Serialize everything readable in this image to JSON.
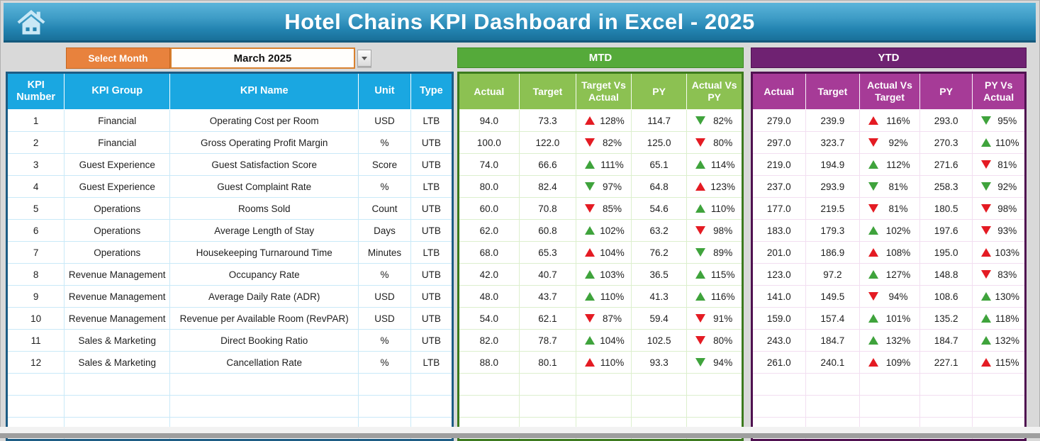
{
  "header": {
    "title": "Hotel Chains KPI Dashboard in Excel - 2025"
  },
  "controls": {
    "select_month_label": "Select Month",
    "selected_month": "March 2025"
  },
  "kpi_table": {
    "headers": [
      "KPI Number",
      "KPI Group",
      "KPI Name",
      "Unit",
      "Type"
    ],
    "rows": [
      {
        "number": "1",
        "group": "Financial",
        "name": "Operating Cost per Room",
        "unit": "USD",
        "type": "LTB"
      },
      {
        "number": "2",
        "group": "Financial",
        "name": "Gross Operating Profit Margin",
        "unit": "%",
        "type": "UTB"
      },
      {
        "number": "3",
        "group": "Guest Experience",
        "name": "Guest Satisfaction Score",
        "unit": "Score",
        "type": "UTB"
      },
      {
        "number": "4",
        "group": "Guest Experience",
        "name": "Guest Complaint Rate",
        "unit": "%",
        "type": "LTB"
      },
      {
        "number": "5",
        "group": "Operations",
        "name": "Rooms Sold",
        "unit": "Count",
        "type": "UTB"
      },
      {
        "number": "6",
        "group": "Operations",
        "name": "Average Length of Stay",
        "unit": "Days",
        "type": "UTB"
      },
      {
        "number": "7",
        "group": "Operations",
        "name": "Housekeeping Turnaround Time",
        "unit": "Minutes",
        "type": "LTB"
      },
      {
        "number": "8",
        "group": "Revenue Management",
        "name": "Occupancy Rate",
        "unit": "%",
        "type": "UTB"
      },
      {
        "number": "9",
        "group": "Revenue Management",
        "name": "Average Daily Rate (ADR)",
        "unit": "USD",
        "type": "UTB"
      },
      {
        "number": "10",
        "group": "Revenue Management",
        "name": "Revenue per Available Room (RevPAR)",
        "unit": "USD",
        "type": "UTB"
      },
      {
        "number": "11",
        "group": "Sales & Marketing",
        "name": "Direct Booking Ratio",
        "unit": "%",
        "type": "UTB"
      },
      {
        "number": "12",
        "group": "Sales & Marketing",
        "name": "Cancellation Rate",
        "unit": "%",
        "type": "LTB"
      }
    ],
    "empty_row_count": 3
  },
  "mtd_table": {
    "title": "MTD",
    "headers": [
      "Actual",
      "Target",
      "Target Vs Actual",
      "PY",
      "Actual Vs PY"
    ],
    "rows": [
      {
        "actual": "94.0",
        "target": "73.3",
        "target_vs_actual": {
          "direction": "up",
          "color": "red",
          "value": "128%"
        },
        "py": "114.7",
        "actual_vs_py": {
          "direction": "down",
          "color": "green",
          "value": "82%"
        }
      },
      {
        "actual": "100.0",
        "target": "122.0",
        "target_vs_actual": {
          "direction": "down",
          "color": "red",
          "value": "82%"
        },
        "py": "125.0",
        "actual_vs_py": {
          "direction": "down",
          "color": "red",
          "value": "80%"
        }
      },
      {
        "actual": "74.0",
        "target": "66.6",
        "target_vs_actual": {
          "direction": "up",
          "color": "green",
          "value": "111%"
        },
        "py": "65.1",
        "actual_vs_py": {
          "direction": "up",
          "color": "green",
          "value": "114%"
        }
      },
      {
        "actual": "80.0",
        "target": "82.4",
        "target_vs_actual": {
          "direction": "down",
          "color": "green",
          "value": "97%"
        },
        "py": "64.8",
        "actual_vs_py": {
          "direction": "up",
          "color": "red",
          "value": "123%"
        }
      },
      {
        "actual": "60.0",
        "target": "70.8",
        "target_vs_actual": {
          "direction": "down",
          "color": "red",
          "value": "85%"
        },
        "py": "54.6",
        "actual_vs_py": {
          "direction": "up",
          "color": "green",
          "value": "110%"
        }
      },
      {
        "actual": "62.0",
        "target": "60.8",
        "target_vs_actual": {
          "direction": "up",
          "color": "green",
          "value": "102%"
        },
        "py": "63.2",
        "actual_vs_py": {
          "direction": "down",
          "color": "red",
          "value": "98%"
        }
      },
      {
        "actual": "68.0",
        "target": "65.3",
        "target_vs_actual": {
          "direction": "up",
          "color": "red",
          "value": "104%"
        },
        "py": "76.2",
        "actual_vs_py": {
          "direction": "down",
          "color": "green",
          "value": "89%"
        }
      },
      {
        "actual": "42.0",
        "target": "40.7",
        "target_vs_actual": {
          "direction": "up",
          "color": "green",
          "value": "103%"
        },
        "py": "36.5",
        "actual_vs_py": {
          "direction": "up",
          "color": "green",
          "value": "115%"
        }
      },
      {
        "actual": "48.0",
        "target": "43.7",
        "target_vs_actual": {
          "direction": "up",
          "color": "green",
          "value": "110%"
        },
        "py": "41.3",
        "actual_vs_py": {
          "direction": "up",
          "color": "green",
          "value": "116%"
        }
      },
      {
        "actual": "54.0",
        "target": "62.1",
        "target_vs_actual": {
          "direction": "down",
          "color": "red",
          "value": "87%"
        },
        "py": "59.4",
        "actual_vs_py": {
          "direction": "down",
          "color": "red",
          "value": "91%"
        }
      },
      {
        "actual": "82.0",
        "target": "78.7",
        "target_vs_actual": {
          "direction": "up",
          "color": "green",
          "value": "104%"
        },
        "py": "102.5",
        "actual_vs_py": {
          "direction": "down",
          "color": "red",
          "value": "80%"
        }
      },
      {
        "actual": "88.0",
        "target": "80.1",
        "target_vs_actual": {
          "direction": "up",
          "color": "red",
          "value": "110%"
        },
        "py": "93.3",
        "actual_vs_py": {
          "direction": "down",
          "color": "green",
          "value": "94%"
        }
      }
    ],
    "empty_row_count": 3
  },
  "ytd_table": {
    "title": "YTD",
    "headers": [
      "Actual",
      "Target",
      "Actual Vs Target",
      "PY",
      "PY Vs Actual"
    ],
    "rows": [
      {
        "actual": "279.0",
        "target": "239.9",
        "actual_vs_target": {
          "direction": "up",
          "color": "red",
          "value": "116%"
        },
        "py": "293.0",
        "py_vs_actual": {
          "direction": "down",
          "color": "green",
          "value": "95%"
        }
      },
      {
        "actual": "297.0",
        "target": "323.7",
        "actual_vs_target": {
          "direction": "down",
          "color": "red",
          "value": "92%"
        },
        "py": "270.3",
        "py_vs_actual": {
          "direction": "up",
          "color": "green",
          "value": "110%"
        }
      },
      {
        "actual": "219.0",
        "target": "194.9",
        "actual_vs_target": {
          "direction": "up",
          "color": "green",
          "value": "112%"
        },
        "py": "271.6",
        "py_vs_actual": {
          "direction": "down",
          "color": "red",
          "value": "81%"
        }
      },
      {
        "actual": "237.0",
        "target": "293.9",
        "actual_vs_target": {
          "direction": "down",
          "color": "green",
          "value": "81%"
        },
        "py": "258.3",
        "py_vs_actual": {
          "direction": "down",
          "color": "green",
          "value": "92%"
        }
      },
      {
        "actual": "177.0",
        "target": "219.5",
        "actual_vs_target": {
          "direction": "down",
          "color": "red",
          "value": "81%"
        },
        "py": "180.5",
        "py_vs_actual": {
          "direction": "down",
          "color": "red",
          "value": "98%"
        }
      },
      {
        "actual": "183.0",
        "target": "179.3",
        "actual_vs_target": {
          "direction": "up",
          "color": "green",
          "value": "102%"
        },
        "py": "197.6",
        "py_vs_actual": {
          "direction": "down",
          "color": "red",
          "value": "93%"
        }
      },
      {
        "actual": "201.0",
        "target": "186.9",
        "actual_vs_target": {
          "direction": "up",
          "color": "red",
          "value": "108%"
        },
        "py": "195.0",
        "py_vs_actual": {
          "direction": "up",
          "color": "red",
          "value": "103%"
        }
      },
      {
        "actual": "123.0",
        "target": "97.2",
        "actual_vs_target": {
          "direction": "up",
          "color": "green",
          "value": "127%"
        },
        "py": "148.8",
        "py_vs_actual": {
          "direction": "down",
          "color": "red",
          "value": "83%"
        }
      },
      {
        "actual": "141.0",
        "target": "149.5",
        "actual_vs_target": {
          "direction": "down",
          "color": "red",
          "value": "94%"
        },
        "py": "108.6",
        "py_vs_actual": {
          "direction": "up",
          "color": "green",
          "value": "130%"
        }
      },
      {
        "actual": "159.0",
        "target": "157.4",
        "actual_vs_target": {
          "direction": "up",
          "color": "green",
          "value": "101%"
        },
        "py": "135.2",
        "py_vs_actual": {
          "direction": "up",
          "color": "green",
          "value": "118%"
        }
      },
      {
        "actual": "243.0",
        "target": "184.7",
        "actual_vs_target": {
          "direction": "up",
          "color": "green",
          "value": "132%"
        },
        "py": "184.7",
        "py_vs_actual": {
          "direction": "up",
          "color": "green",
          "value": "132%"
        }
      },
      {
        "actual": "261.0",
        "target": "240.1",
        "actual_vs_target": {
          "direction": "up",
          "color": "red",
          "value": "109%"
        },
        "py": "227.1",
        "py_vs_actual": {
          "direction": "up",
          "color": "red",
          "value": "115%"
        }
      }
    ],
    "empty_row_count": 3
  },
  "colors": {
    "title_bar_blue_top": "#5ab4da",
    "title_bar_blue_bottom": "#196f99",
    "kpi_header_blue": "#1aa7e1",
    "kpi_table_border": "#1d5c84",
    "mtd_bar_green": "#55aa3a",
    "mtd_header_green": "#8cc152",
    "mtd_table_border": "#3c7a1e",
    "ytd_bar_purple": "#6f2272",
    "ytd_header_purple": "#a63b97",
    "ytd_table_border": "#4f1150",
    "select_month_orange": "#e8823d",
    "indicator_red": "#e41b23",
    "indicator_green": "#3fa33c"
  }
}
